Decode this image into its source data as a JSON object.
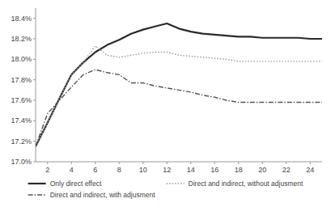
{
  "chart_data": {
    "type": "line",
    "x": [
      1,
      2,
      3,
      4,
      5,
      6,
      7,
      8,
      9,
      10,
      11,
      12,
      13,
      14,
      15,
      16,
      17,
      18,
      19,
      20,
      21,
      22,
      23,
      24,
      25
    ],
    "series": [
      {
        "name": "Only direct effect",
        "color": "#2a2a2a",
        "line_style": "solid",
        "values": [
          17.15,
          17.38,
          17.62,
          17.85,
          17.97,
          18.07,
          18.14,
          18.19,
          18.25,
          18.29,
          18.32,
          18.35,
          18.3,
          18.27,
          18.25,
          18.24,
          18.23,
          18.22,
          18.22,
          18.21,
          18.21,
          18.21,
          18.21,
          18.2,
          18.2
        ]
      },
      {
        "name": "Direct and indirect, without adjusment",
        "color": "#999999",
        "line_style": "dotted",
        "values": [
          17.15,
          17.38,
          17.62,
          17.85,
          17.97,
          18.13,
          18.04,
          18.02,
          18.04,
          18.06,
          18.07,
          18.07,
          18.04,
          18.03,
          18.02,
          18.01,
          18.0,
          17.98,
          17.98,
          17.98,
          17.98,
          17.98,
          17.98,
          17.98,
          17.98
        ]
      },
      {
        "name": "Direct and indirect, with adjusment",
        "color": "#555555",
        "line_style": "dashdot",
        "values": [
          17.15,
          17.47,
          17.6,
          17.73,
          17.85,
          17.9,
          17.87,
          17.85,
          17.77,
          17.77,
          17.74,
          17.72,
          17.7,
          17.68,
          17.65,
          17.63,
          17.6,
          17.58,
          17.58,
          17.58,
          17.58,
          17.58,
          17.58,
          17.58,
          17.58
        ]
      }
    ],
    "xlim": [
      1,
      25
    ],
    "xticks": [
      2,
      4,
      6,
      8,
      10,
      12,
      14,
      16,
      18,
      20,
      22,
      24
    ],
    "ylim": [
      17.0,
      18.5
    ],
    "yticks": [
      {
        "value": 17.0,
        "label": "17.0%"
      },
      {
        "value": 17.2,
        "label": "17.2%"
      },
      {
        "value": 17.4,
        "label": "17.4%"
      },
      {
        "value": 17.6,
        "label": "17.6%"
      },
      {
        "value": 17.8,
        "label": "17.8%"
      },
      {
        "value": 18.0,
        "label": "18.0%"
      },
      {
        "value": 18.2,
        "label": "18.2%"
      },
      {
        "value": 18.4,
        "label": "18.4%"
      }
    ],
    "grid": false,
    "legend": "bottom"
  }
}
